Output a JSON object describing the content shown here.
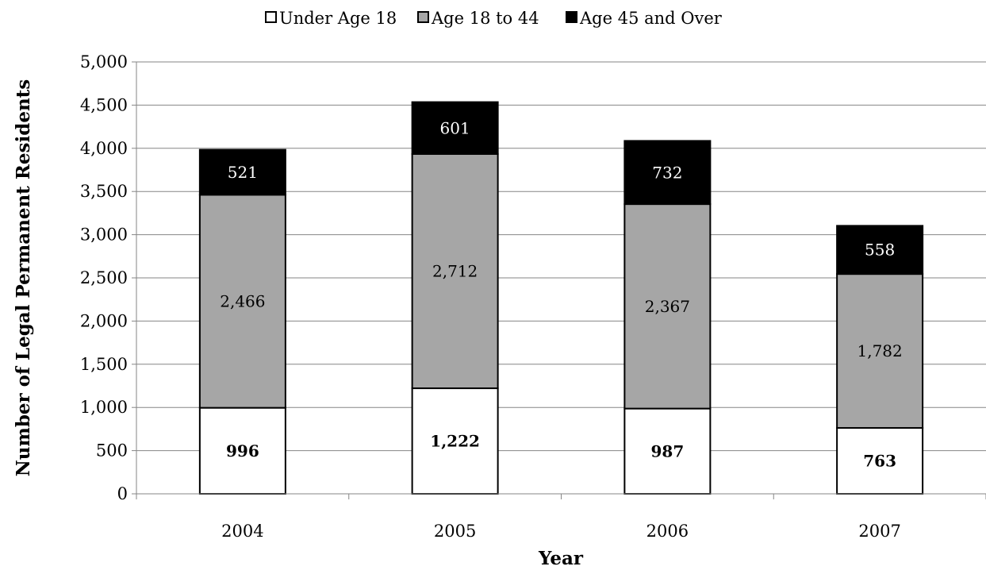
{
  "chart_data": {
    "type": "bar",
    "stacked": true,
    "title": "",
    "xlabel": "Year",
    "ylabel": "Number of Legal Permanent Residents",
    "categories": [
      "2004",
      "2005",
      "2006",
      "2007"
    ],
    "ylim": [
      0,
      5000
    ],
    "yticks": [
      0,
      500,
      1000,
      1500,
      2000,
      2500,
      3000,
      3500,
      4000,
      4500,
      5000
    ],
    "ytick_labels": [
      "0",
      "500",
      "1,000",
      "1,500",
      "2,000",
      "2,500",
      "3,000",
      "3,500",
      "4,000",
      "4,500",
      "5,000"
    ],
    "grid": true,
    "legend_position": "top-center",
    "series": [
      {
        "name": "Under Age 18",
        "color": "#ffffff",
        "label_color": "#000000",
        "label_bold": true,
        "values": [
          996,
          1222,
          987,
          763
        ],
        "labels": [
          "996",
          "1,222",
          "987",
          "763"
        ]
      },
      {
        "name": "Age 18 to 44",
        "color": "#a6a6a6",
        "label_color": "#000000",
        "label_bold": false,
        "values": [
          2466,
          2712,
          2367,
          1782
        ],
        "labels": [
          "2,466",
          "2,712",
          "2,367",
          "1,782"
        ]
      },
      {
        "name": "Age 45 and Over",
        "color": "#000000",
        "label_color": "#ffffff",
        "label_bold": false,
        "values": [
          521,
          601,
          732,
          558
        ],
        "labels": [
          "521",
          "601",
          "732",
          "558"
        ]
      }
    ]
  }
}
